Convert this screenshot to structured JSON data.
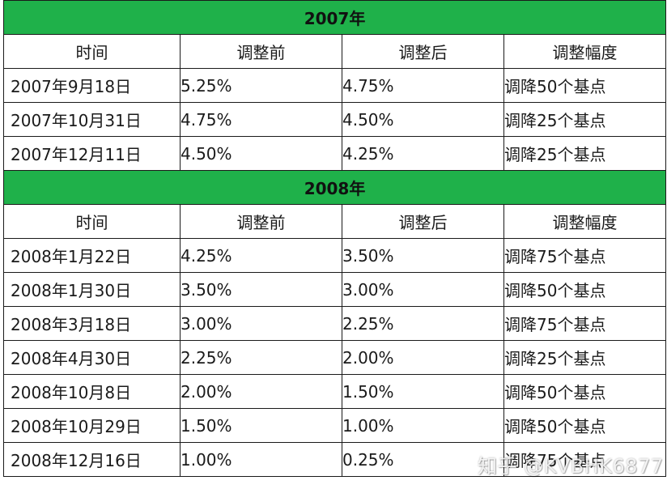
{
  "headers": [
    "时间",
    "调整前",
    "调整后",
    "调整幅度"
  ],
  "sections": [
    {
      "year": "2007年",
      "rows": [
        {
          "date": "2007年9月18日",
          "before": "5.25%",
          "after": "4.75%",
          "change": "调降50个基点"
        },
        {
          "date": "2007年10月31日",
          "before": "4.75%",
          "after": "4.50%",
          "change": "调降25个基点"
        },
        {
          "date": "2007年12月11日",
          "before": "4.50%",
          "after": "4.25%",
          "change": "调降25个基点"
        }
      ]
    },
    {
      "year": "2008年",
      "rows": [
        {
          "date": "2008年1月22日",
          "before": "4.25%",
          "after": "3.50%",
          "change": "调降75个基点"
        },
        {
          "date": "2008年1月30日",
          "before": "3.50%",
          "after": "3.00%",
          "change": "调降50个基点"
        },
        {
          "date": "2008年3月18日",
          "before": "3.00%",
          "after": "2.25%",
          "change": "调降75个基点"
        },
        {
          "date": "2008年4月30日",
          "before": "2.25%",
          "after": "2.00%",
          "change": "调降25个基点"
        },
        {
          "date": "2008年10月8日",
          "before": "2.00%",
          "after": "1.50%",
          "change": "调降50个基点"
        },
        {
          "date": "2008年10月29日",
          "before": "1.50%",
          "after": "1.00%",
          "change": "调降50个基点"
        },
        {
          "date": "2008年12月16日",
          "before": "1.00%",
          "after": "0.25%",
          "change": "调降75个基点"
        }
      ]
    }
  ],
  "watermark": "知乎 @KVBHK6877",
  "colors": {
    "year_band": "#1fb14a",
    "grid": "#1a1a1a"
  }
}
